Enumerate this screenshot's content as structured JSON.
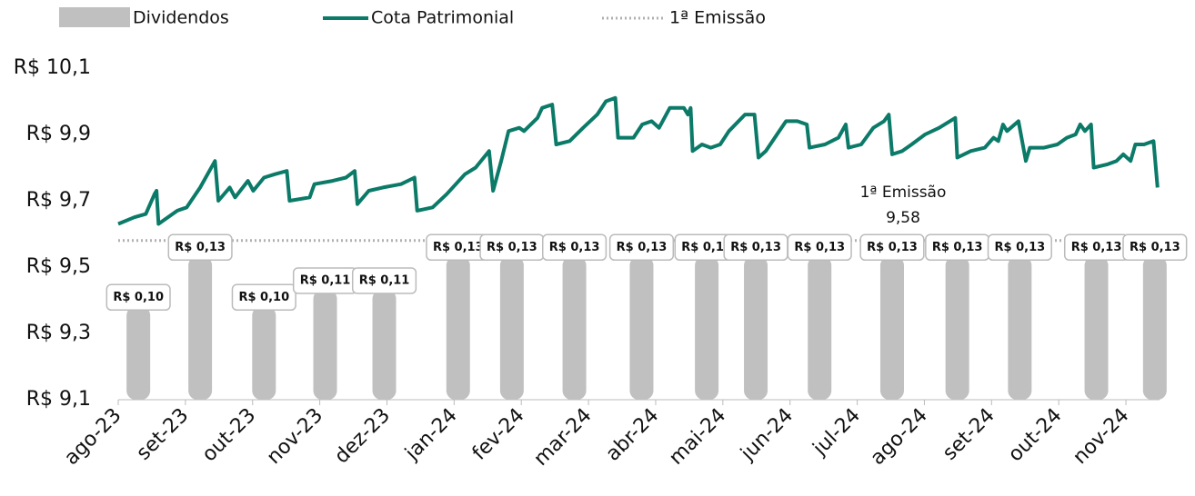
{
  "chart_data": {
    "type": "combo",
    "series": [
      {
        "name": "Dividendos",
        "type": "bar",
        "axis": "y2",
        "color": "#c0c0c0",
        "x": [
          0.3,
          1.22,
          2.17,
          3.08,
          3.96,
          5.06,
          5.86,
          6.79,
          7.79,
          8.76,
          9.49,
          10.44,
          11.52,
          12.49,
          13.42,
          14.56,
          15.43
        ],
        "values": [
          0.1,
          0.13,
          0.1,
          0.11,
          0.11,
          0.13,
          0.13,
          0.13,
          0.13,
          0.13,
          0.13,
          0.13,
          0.13,
          0.13,
          0.13,
          0.13,
          0.13
        ],
        "value_labels": [
          "R$ 0,10",
          "R$ 0,13",
          "R$ 0,10",
          "R$ 0,11",
          "R$ 0,11",
          "R$ 0,13",
          "R$ 0,13",
          "R$ 0,13",
          "R$ 0,13",
          "R$ 0,13",
          "R$ 0,13",
          "R$ 0,13",
          "R$ 0,13",
          "R$ 0,13",
          "R$ 0,13",
          "R$ 0,13",
          "R$ 0,13"
        ]
      },
      {
        "name": "Cota Patrimonial",
        "type": "line",
        "color": "#0b7a68",
        "x": [
          0,
          0.24,
          0.41,
          0.54,
          0.57,
          0.6,
          0.88,
          1.02,
          1.22,
          1.44,
          1.49,
          1.66,
          1.74,
          1.93,
          2.01,
          2.17,
          2.33,
          2.51,
          2.55,
          2.85,
          2.92,
          3.19,
          3.39,
          3.52,
          3.56,
          3.73,
          3.94,
          4.21,
          4.41,
          4.45,
          4.68,
          4.89,
          5.16,
          5.32,
          5.52,
          5.58,
          5.7,
          5.81,
          5.97,
          6.04,
          6.24,
          6.31,
          6.46,
          6.52,
          6.72,
          6.92,
          7.13,
          7.26,
          7.4,
          7.44,
          7.67,
          7.8,
          7.94,
          8.05,
          8.21,
          8.42,
          8.48,
          8.52,
          8.55,
          8.69,
          8.82,
          8.96,
          9.09,
          9.33,
          9.47,
          9.53,
          9.64,
          9.84,
          9.94,
          10.11,
          10.25,
          10.29,
          10.52,
          10.72,
          10.83,
          10.87,
          11.06,
          11.24,
          11.4,
          11.47,
          11.52,
          11.67,
          11.81,
          12.01,
          12.22,
          12.46,
          12.49,
          12.69,
          12.9,
          13.03,
          13.1,
          13.17,
          13.23,
          13.4,
          13.51,
          13.57,
          13.78,
          13.98,
          14.12,
          14.25,
          14.32,
          14.39,
          14.48,
          14.52,
          14.73,
          14.86,
          14.96,
          15.07,
          15.14,
          15.27,
          15.41,
          15.47
        ],
        "values": [
          9.63,
          9.65,
          9.66,
          9.72,
          9.73,
          9.63,
          9.67,
          9.68,
          9.74,
          9.82,
          9.7,
          9.74,
          9.71,
          9.76,
          9.73,
          9.77,
          9.78,
          9.79,
          9.7,
          9.71,
          9.75,
          9.76,
          9.77,
          9.79,
          9.69,
          9.73,
          9.74,
          9.75,
          9.77,
          9.67,
          9.68,
          9.72,
          9.78,
          9.8,
          9.85,
          9.73,
          9.82,
          9.91,
          9.92,
          9.91,
          9.95,
          9.98,
          9.99,
          9.87,
          9.88,
          9.92,
          9.96,
          10.0,
          10.01,
          9.89,
          9.89,
          9.93,
          9.94,
          9.92,
          9.98,
          9.98,
          9.96,
          9.98,
          9.85,
          9.87,
          9.86,
          9.87,
          9.91,
          9.96,
          9.96,
          9.83,
          9.85,
          9.91,
          9.94,
          9.94,
          9.93,
          9.86,
          9.87,
          9.89,
          9.93,
          9.86,
          9.87,
          9.92,
          9.94,
          9.96,
          9.84,
          9.85,
          9.87,
          9.9,
          9.92,
          9.95,
          9.83,
          9.85,
          9.86,
          9.89,
          9.88,
          9.93,
          9.91,
          9.94,
          9.82,
          9.86,
          9.86,
          9.87,
          9.89,
          9.9,
          9.93,
          9.91,
          9.93,
          9.8,
          9.81,
          9.82,
          9.84,
          9.82,
          9.87,
          9.87,
          9.88,
          9.74
        ]
      }
    ],
    "reference": {
      "name": "1ª Emissão",
      "value": 9.58,
      "value_label": "9,58",
      "color": "#b0b0b0"
    },
    "xlim": [
      0,
      15.5
    ],
    "xticks": [
      {
        "value": 0,
        "label": "ago-23"
      },
      {
        "value": 1,
        "label": "set-23"
      },
      {
        "value": 2,
        "label": "out-23"
      },
      {
        "value": 3,
        "label": "nov-23"
      },
      {
        "value": 4,
        "label": "dez-23"
      },
      {
        "value": 5,
        "label": "jan-24"
      },
      {
        "value": 6,
        "label": "fev-24"
      },
      {
        "value": 7,
        "label": "mar-24"
      },
      {
        "value": 8,
        "label": "abr-24"
      },
      {
        "value": 9,
        "label": "mai-24"
      },
      {
        "value": 10,
        "label": "jun-24"
      },
      {
        "value": 11,
        "label": "jul-24"
      },
      {
        "value": 12,
        "label": "ago-24"
      },
      {
        "value": 13,
        "label": "set-24"
      },
      {
        "value": 14,
        "label": "out-24"
      },
      {
        "value": 15,
        "label": "nov-24"
      }
    ],
    "ylim": [
      9.1,
      10.1
    ],
    "yticks": [
      {
        "value": 9.1,
        "label": "R$ 9,1"
      },
      {
        "value": 9.3,
        "label": "R$ 9,3"
      },
      {
        "value": 9.5,
        "label": "R$ 9,5"
      },
      {
        "value": 9.7,
        "label": "R$ 9,7"
      },
      {
        "value": 9.9,
        "label": "R$ 9,9"
      },
      {
        "value": 10.1,
        "label": "R$ 10,1"
      }
    ],
    "y2lim": [
      0.044,
      0.243
    ]
  }
}
